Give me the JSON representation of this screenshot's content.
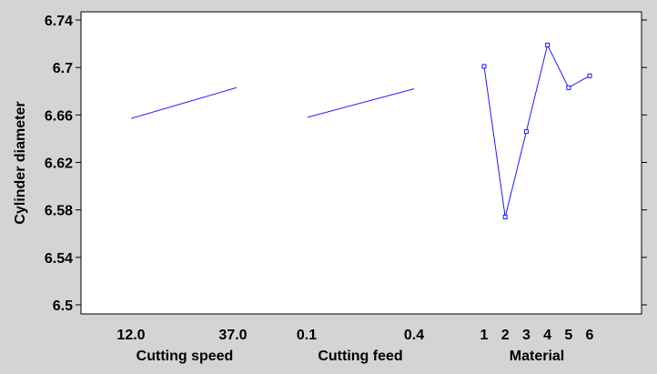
{
  "chart_data": {
    "type": "line",
    "title": "",
    "ylabel": "Cylinder diameter",
    "ylim": [
      6.49,
      6.745
    ],
    "yticks": [
      "6.74",
      "6.7",
      "6.66",
      "6.62",
      "6.58",
      "6.54",
      "6.5"
    ],
    "grid": false,
    "colors": {
      "line": "#1a1aff",
      "plot_bg": "#ffffff",
      "frame": "#000000",
      "page_bg": "#d4d4d4"
    },
    "panels": [
      {
        "xlabel": "Cutting speed",
        "x": [
          12.0,
          37.0
        ],
        "tick_labels": [
          "12.0",
          "37.0"
        ],
        "values": [
          6.657,
          6.683
        ],
        "markers": false
      },
      {
        "xlabel": "Cutting feed",
        "x": [
          0.1,
          0.4
        ],
        "tick_labels": [
          "0.1",
          "0.4"
        ],
        "values": [
          6.658,
          6.682
        ],
        "markers": false
      },
      {
        "xlabel": "Material",
        "x": [
          1,
          2,
          3,
          4,
          5,
          6
        ],
        "tick_labels": [
          "1",
          "2",
          "3",
          "4",
          "5",
          "6"
        ],
        "values": [
          6.701,
          6.574,
          6.646,
          6.719,
          6.683,
          6.693
        ],
        "markers": true
      }
    ]
  }
}
